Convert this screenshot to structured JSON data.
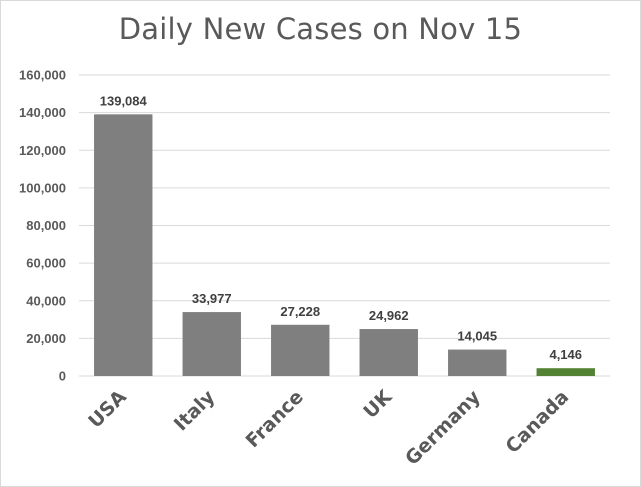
{
  "chart_data": {
    "type": "bar",
    "title": "Daily New Cases on Nov 15",
    "categories": [
      "USA",
      "Italy",
      "France",
      "UK",
      "Germany",
      "Canada"
    ],
    "values": [
      139084,
      33977,
      27228,
      24962,
      14045,
      4146
    ],
    "value_labels": [
      "139,084",
      "33,977",
      "27,228",
      "24,962",
      "14,045",
      "4,146"
    ],
    "bar_colors": [
      "#7f7f7f",
      "#7f7f7f",
      "#7f7f7f",
      "#7f7f7f",
      "#7f7f7f",
      "#548235"
    ],
    "ylim": [
      0,
      160000
    ],
    "yticks": [
      0,
      20000,
      40000,
      60000,
      80000,
      100000,
      120000,
      140000,
      160000
    ],
    "ytick_labels": [
      "0",
      "20,000",
      "40,000",
      "60,000",
      "80,000",
      "100,000",
      "120,000",
      "140,000",
      "160,000"
    ],
    "xlabel": "",
    "ylabel": "",
    "grid": true,
    "legend": "none",
    "gridline_color": "#d9d9d9"
  }
}
